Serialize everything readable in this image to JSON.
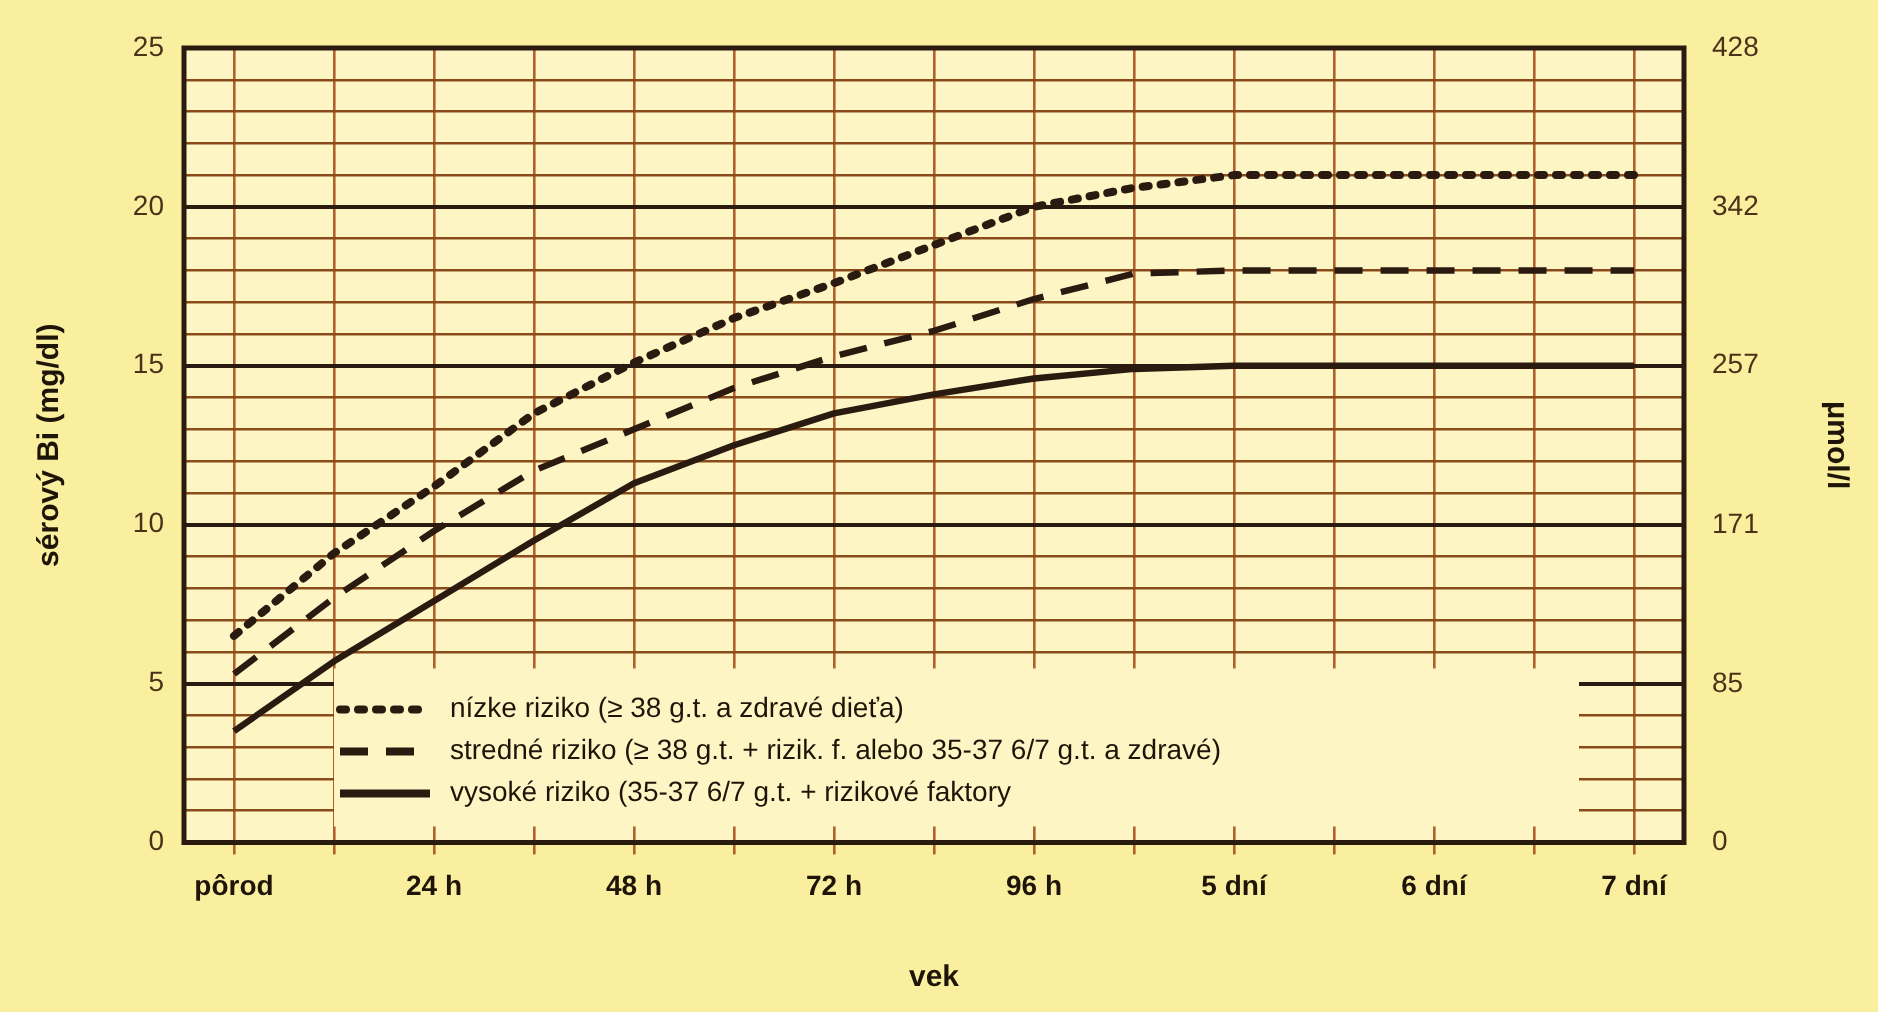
{
  "chart_data": {
    "type": "line",
    "xlabel": "vek",
    "ylabel": "sérový Bi (mg/dl)",
    "y2label": "μmol/l",
    "categories": [
      "pôrod",
      null,
      "24 h",
      null,
      "48 h",
      null,
      "72 h",
      null,
      "96 h",
      null,
      "5 dní",
      null,
      "6 dní",
      null,
      "7 dní"
    ],
    "ylim": [
      0,
      25
    ],
    "yticks": [
      0,
      {
        "value": 1,
        "label": null
      },
      {
        "value": 2,
        "label": null
      },
      {
        "value": 3,
        "label": null
      },
      {
        "value": 4,
        "label": null
      },
      5,
      {
        "value": 6,
        "label": null
      },
      {
        "value": 7,
        "label": null
      },
      {
        "value": 8,
        "label": null
      },
      {
        "value": 9,
        "label": null
      },
      10,
      {
        "value": 11,
        "label": null
      },
      {
        "value": 12,
        "label": null
      },
      {
        "value": 13,
        "label": null
      },
      {
        "value": 14,
        "label": null
      },
      15,
      {
        "value": 16,
        "label": null
      },
      {
        "value": 17,
        "label": null
      },
      {
        "value": 18,
        "label": null
      },
      {
        "value": 19,
        "label": null
      },
      20,
      {
        "value": 21,
        "label": null
      },
      {
        "value": 22,
        "label": null
      },
      {
        "value": 23,
        "label": null
      },
      {
        "value": 24,
        "label": null
      },
      25
    ],
    "y2lim": [
      0,
      428
    ],
    "y2ticks": [
      0,
      85,
      171,
      257,
      342,
      428
    ],
    "grid": true,
    "legend": "bottom",
    "marker": "none",
    "series": [
      {
        "name": "nízke riziko (≥ 38 g.t. a zdravé dieťa)",
        "color": "#2a1a10",
        "line_style": "dotted",
        "values": [
          6.5,
          9.1,
          11.2,
          13.5,
          15.1,
          16.5,
          17.6,
          18.8,
          20.0,
          20.6,
          21,
          21,
          21,
          21,
          21
        ]
      },
      {
        "name": "stredné riziko (≥ 38 g.t. + rizik. f. alebo 35-37 6/7 g.t. a zdravé)",
        "color": "#2a1a10",
        "line_style": "dashed",
        "values": [
          5.3,
          7.7,
          9.8,
          11.7,
          13.0,
          14.3,
          15.3,
          16.1,
          17.1,
          17.9,
          18,
          18,
          18,
          18,
          18
        ]
      },
      {
        "name": "vysoké riziko (35-37 6/7 g.t. + rizikové faktory",
        "color": "#2a1a10",
        "line_style": "solid",
        "values": [
          3.5,
          5.7,
          7.6,
          9.5,
          11.3,
          12.5,
          13.5,
          14.1,
          14.6,
          14.9,
          15,
          15,
          15,
          15,
          15
        ]
      }
    ]
  }
}
